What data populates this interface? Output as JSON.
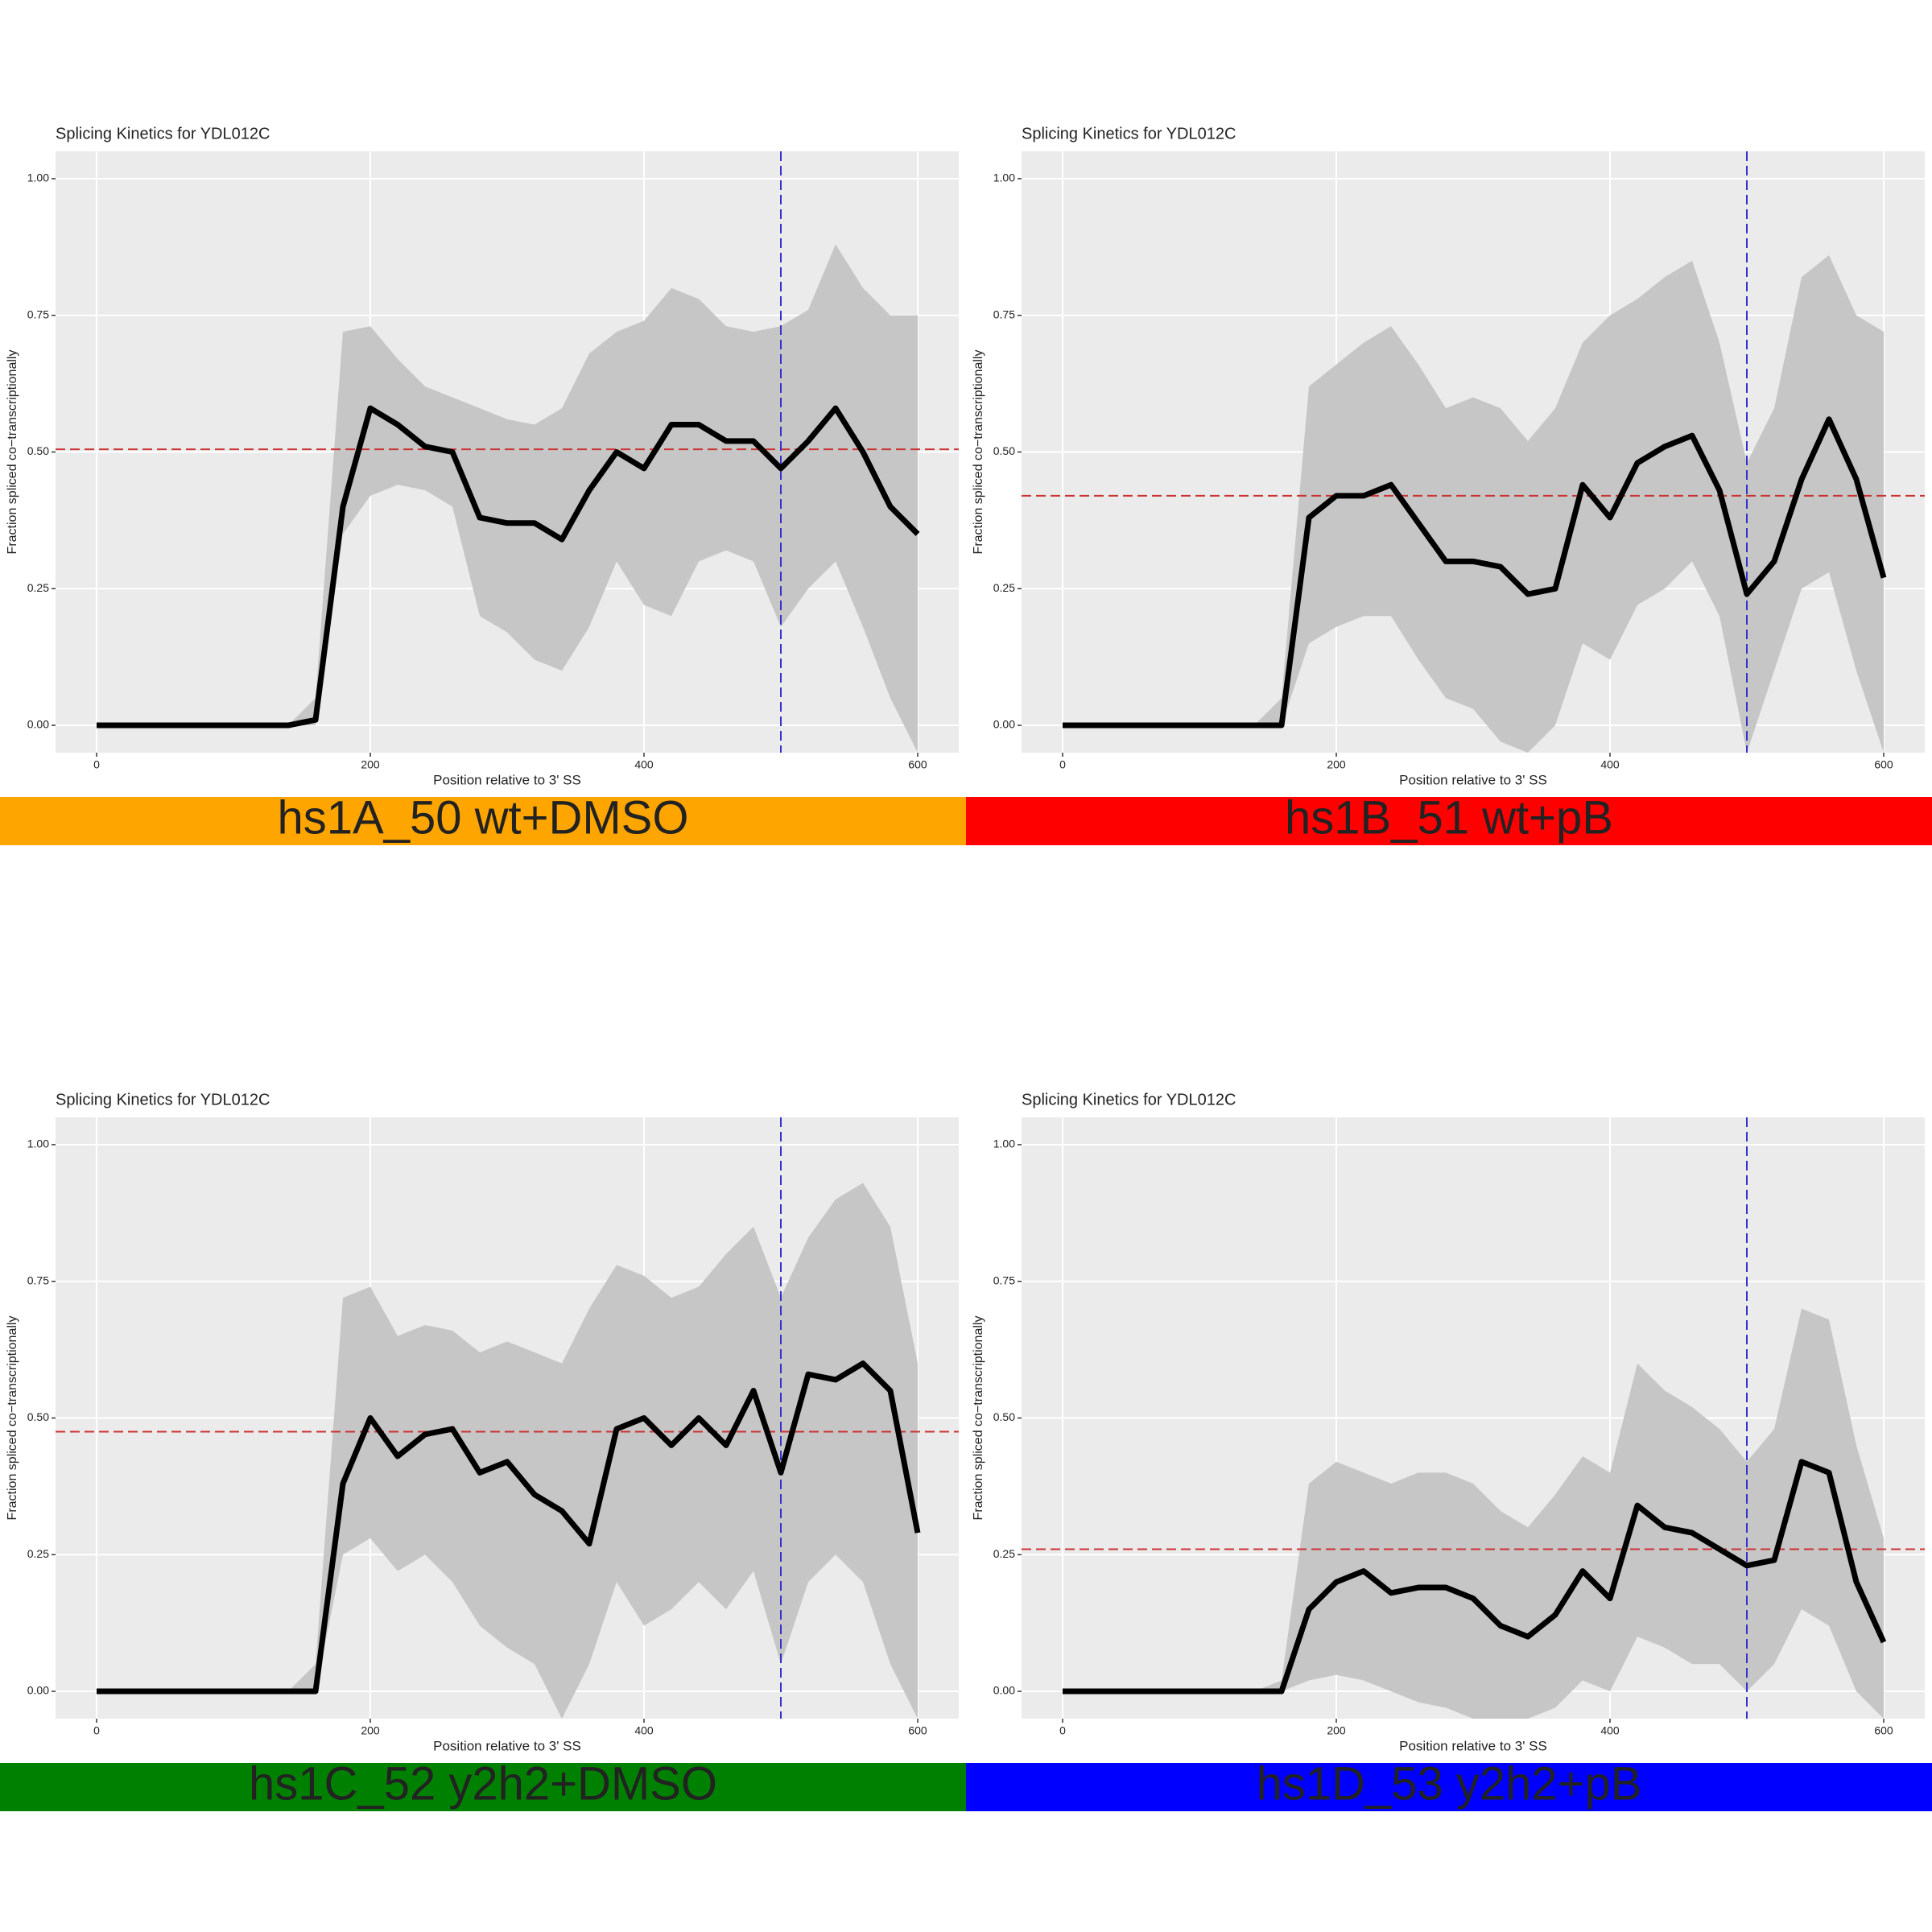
{
  "chart_data": [
    {
      "type": "line",
      "title": "Splicing Kinetics for YDL012C",
      "xlabel": "Position relative to 3' SS",
      "ylabel": "Fraction spliced co−transcriptionally",
      "caption": "hs1A_50 wt+DMSO",
      "caption_color": "#ffa500",
      "x": [
        0,
        20,
        40,
        60,
        80,
        100,
        120,
        140,
        160,
        180,
        200,
        220,
        240,
        260,
        280,
        300,
        320,
        340,
        360,
        380,
        400,
        420,
        440,
        460,
        480,
        500,
        520,
        540,
        560,
        580,
        600
      ],
      "values": [
        0,
        0,
        0,
        0,
        0,
        0,
        0,
        0,
        0.01,
        0.4,
        0.58,
        0.55,
        0.51,
        0.5,
        0.38,
        0.37,
        0.37,
        0.34,
        0.43,
        0.5,
        0.47,
        0.55,
        0.55,
        0.52,
        0.52,
        0.47,
        0.52,
        0.58,
        0.5,
        0.4,
        0.35
      ],
      "color": "#000000",
      "band": {
        "lower": [
          0,
          0,
          0,
          0,
          0,
          0,
          0,
          0,
          0,
          0.35,
          0.42,
          0.44,
          0.43,
          0.4,
          0.2,
          0.17,
          0.12,
          0.1,
          0.18,
          0.3,
          0.22,
          0.2,
          0.3,
          0.32,
          0.3,
          0.18,
          0.25,
          0.3,
          0.18,
          0.05,
          -0.05
        ],
        "upper": [
          0,
          0,
          0,
          0,
          0,
          0,
          0,
          0,
          0.05,
          0.72,
          0.73,
          0.67,
          0.62,
          0.6,
          0.58,
          0.56,
          0.55,
          0.58,
          0.68,
          0.72,
          0.74,
          0.8,
          0.78,
          0.73,
          0.72,
          0.73,
          0.76,
          0.88,
          0.8,
          0.75,
          0.75
        ],
        "color": "#c6c6c6"
      },
      "hline": {
        "value": 0.505,
        "color": "#cc3333"
      },
      "vline": {
        "value": 500,
        "color": "#3333cc"
      },
      "xlim": [
        -30,
        630
      ],
      "ylim": [
        -0.05,
        1.05
      ],
      "xticks": [
        0,
        200,
        400,
        600
      ],
      "yticks": [
        {
          "value": 0,
          "label": "0.00"
        },
        {
          "value": 0.25,
          "label": "0.25"
        },
        {
          "value": 0.5,
          "label": "0.50"
        },
        {
          "value": 0.75,
          "label": "0.75"
        },
        {
          "value": 1,
          "label": "1.00"
        }
      ],
      "grid": true
    },
    {
      "type": "line",
      "title": "Splicing Kinetics for YDL012C",
      "xlabel": "Position relative to 3' SS",
      "ylabel": "Fraction spliced co−transcriptionally",
      "caption": "hs1B_51 wt+pB",
      "caption_color": "#ff0000",
      "x": [
        0,
        20,
        40,
        60,
        80,
        100,
        120,
        140,
        160,
        180,
        200,
        220,
        240,
        260,
        280,
        300,
        320,
        340,
        360,
        380,
        400,
        420,
        440,
        460,
        480,
        500,
        520,
        540,
        560,
        580,
        600
      ],
      "values": [
        0,
        0,
        0,
        0,
        0,
        0,
        0,
        0,
        0,
        0.38,
        0.42,
        0.42,
        0.44,
        0.37,
        0.3,
        0.3,
        0.29,
        0.24,
        0.25,
        0.44,
        0.38,
        0.48,
        0.51,
        0.53,
        0.43,
        0.24,
        0.3,
        0.45,
        0.56,
        0.45,
        0.27
      ],
      "color": "#000000",
      "band": {
        "lower": [
          0,
          0,
          0,
          0,
          0,
          0,
          0,
          0,
          0,
          0.15,
          0.18,
          0.2,
          0.2,
          0.12,
          0.05,
          0.03,
          -0.03,
          -0.05,
          0,
          0.15,
          0.12,
          0.22,
          0.25,
          0.3,
          0.2,
          -0.05,
          0.1,
          0.25,
          0.28,
          0.1,
          -0.05
        ],
        "upper": [
          0,
          0,
          0,
          0,
          0,
          0,
          0,
          0,
          0.05,
          0.62,
          0.66,
          0.7,
          0.73,
          0.66,
          0.58,
          0.6,
          0.58,
          0.52,
          0.58,
          0.7,
          0.75,
          0.78,
          0.82,
          0.85,
          0.7,
          0.48,
          0.58,
          0.82,
          0.86,
          0.75,
          0.72
        ],
        "color": "#c6c6c6"
      },
      "hline": {
        "value": 0.42,
        "color": "#cc3333"
      },
      "vline": {
        "value": 500,
        "color": "#3333cc"
      },
      "xlim": [
        -30,
        630
      ],
      "ylim": [
        -0.05,
        1.05
      ],
      "xticks": [
        0,
        200,
        400,
        600
      ],
      "yticks": [
        {
          "value": 0,
          "label": "0.00"
        },
        {
          "value": 0.25,
          "label": "0.25"
        },
        {
          "value": 0.5,
          "label": "0.50"
        },
        {
          "value": 0.75,
          "label": "0.75"
        },
        {
          "value": 1,
          "label": "1.00"
        }
      ],
      "grid": true
    },
    {
      "type": "line",
      "title": "Splicing Kinetics for YDL012C",
      "xlabel": "Position relative to 3' SS",
      "ylabel": "Fraction spliced co−transcriptionally",
      "caption": "hs1C_52 y2h2+DMSO",
      "caption_color": "#008000",
      "x": [
        0,
        20,
        40,
        60,
        80,
        100,
        120,
        140,
        160,
        180,
        200,
        220,
        240,
        260,
        280,
        300,
        320,
        340,
        360,
        380,
        400,
        420,
        440,
        460,
        480,
        500,
        520,
        540,
        560,
        580,
        600
      ],
      "values": [
        0,
        0,
        0,
        0,
        0,
        0,
        0,
        0,
        0,
        0.38,
        0.5,
        0.43,
        0.47,
        0.48,
        0.4,
        0.42,
        0.36,
        0.33,
        0.27,
        0.48,
        0.5,
        0.45,
        0.5,
        0.45,
        0.55,
        0.4,
        0.58,
        0.57,
        0.6,
        0.55,
        0.29
      ],
      "color": "#000000",
      "band": {
        "lower": [
          0,
          0,
          0,
          0,
          0,
          0,
          0,
          0,
          0,
          0.25,
          0.28,
          0.22,
          0.25,
          0.2,
          0.12,
          0.08,
          0.05,
          -0.05,
          0.05,
          0.2,
          0.12,
          0.15,
          0.2,
          0.15,
          0.22,
          0.05,
          0.2,
          0.25,
          0.2,
          0.05,
          -0.05
        ],
        "upper": [
          0,
          0,
          0,
          0,
          0,
          0,
          0,
          0,
          0.05,
          0.72,
          0.74,
          0.65,
          0.67,
          0.66,
          0.62,
          0.64,
          0.62,
          0.6,
          0.7,
          0.78,
          0.76,
          0.72,
          0.74,
          0.8,
          0.85,
          0.72,
          0.83,
          0.9,
          0.93,
          0.85,
          0.6
        ],
        "color": "#c6c6c6"
      },
      "hline": {
        "value": 0.475,
        "color": "#cc3333"
      },
      "vline": {
        "value": 500,
        "color": "#3333cc"
      },
      "xlim": [
        -30,
        630
      ],
      "ylim": [
        -0.05,
        1.05
      ],
      "xticks": [
        0,
        200,
        400,
        600
      ],
      "yticks": [
        {
          "value": 0,
          "label": "0.00"
        },
        {
          "value": 0.25,
          "label": "0.25"
        },
        {
          "value": 0.5,
          "label": "0.50"
        },
        {
          "value": 0.75,
          "label": "0.75"
        },
        {
          "value": 1,
          "label": "1.00"
        }
      ],
      "grid": true
    },
    {
      "type": "line",
      "title": "Splicing Kinetics for YDL012C",
      "xlabel": "Position relative to 3' SS",
      "ylabel": "Fraction spliced co−transcriptionally",
      "caption": "hs1D_53 y2h2+pB",
      "caption_color": "#0000ff",
      "x": [
        0,
        20,
        40,
        60,
        80,
        100,
        120,
        140,
        160,
        180,
        200,
        220,
        240,
        260,
        280,
        300,
        320,
        340,
        360,
        380,
        400,
        420,
        440,
        460,
        480,
        500,
        520,
        540,
        560,
        580,
        600
      ],
      "values": [
        0,
        0,
        0,
        0,
        0,
        0,
        0,
        0,
        0,
        0.15,
        0.2,
        0.22,
        0.18,
        0.19,
        0.19,
        0.17,
        0.12,
        0.1,
        0.14,
        0.22,
        0.17,
        0.34,
        0.3,
        0.29,
        0.26,
        0.23,
        0.24,
        0.42,
        0.4,
        0.2,
        0.09
      ],
      "color": "#000000",
      "band": {
        "lower": [
          0,
          0,
          0,
          0,
          0,
          0,
          0,
          0,
          0,
          0.02,
          0.03,
          0.02,
          0,
          -0.02,
          -0.03,
          -0.05,
          -0.05,
          -0.05,
          -0.03,
          0.02,
          0,
          0.1,
          0.08,
          0.05,
          0.05,
          0,
          0.05,
          0.15,
          0.12,
          0,
          -0.05
        ],
        "upper": [
          0,
          0,
          0,
          0,
          0,
          0,
          0,
          0,
          0.02,
          0.38,
          0.42,
          0.4,
          0.38,
          0.4,
          0.4,
          0.38,
          0.33,
          0.3,
          0.36,
          0.43,
          0.4,
          0.6,
          0.55,
          0.52,
          0.48,
          0.42,
          0.48,
          0.7,
          0.68,
          0.45,
          0.28
        ],
        "color": "#c6c6c6"
      },
      "hline": {
        "value": 0.26,
        "color": "#cc3333"
      },
      "vline": {
        "value": 500,
        "color": "#3333cc"
      },
      "xlim": [
        -30,
        630
      ],
      "ylim": [
        -0.05,
        1.05
      ],
      "xticks": [
        0,
        200,
        400,
        600
      ],
      "yticks": [
        {
          "value": 0,
          "label": "0.00"
        },
        {
          "value": 0.25,
          "label": "0.25"
        },
        {
          "value": 0.5,
          "label": "0.50"
        },
        {
          "value": 0.75,
          "label": "0.75"
        },
        {
          "value": 1,
          "label": "1.00"
        }
      ],
      "grid": true
    }
  ]
}
